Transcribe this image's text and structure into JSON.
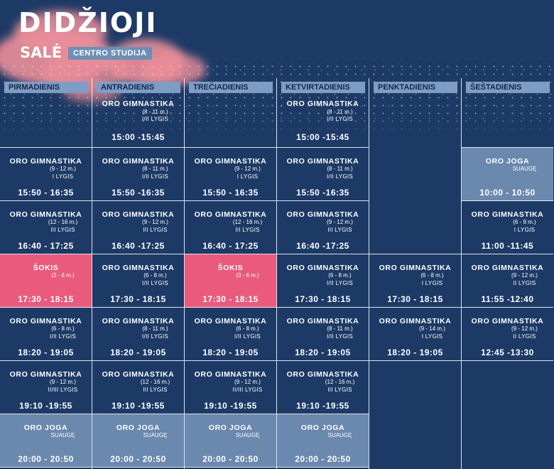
{
  "header": {
    "title": "DIDŽIOJI",
    "subtitle": "SALĖ",
    "studio": "CENTRO STUDIJA"
  },
  "days": [
    {
      "name": "PIRMADIENIS",
      "slots": [
        null,
        {
          "name": "ORO GIMNASTIKA",
          "age": "(9 - 12 m.)",
          "level": "I LYGIS",
          "time": "15:50 - 16:35"
        },
        {
          "name": "ORO GIMNASTIKA",
          "age": "(12 - 16 m.)",
          "level": "III LYGIS",
          "time": "16:40 - 17:25"
        },
        {
          "name": "ŠOKIS",
          "age": "(3 - 6 m.)",
          "level": "",
          "time": "17:30 - 18:15",
          "style": "pink"
        },
        {
          "name": "ORO GIMNASTIKA",
          "age": "(6 - 8 m.)",
          "level": "I/II LYGIS",
          "time": "18:20 - 19:05"
        },
        {
          "name": "ORO GIMNASTIKA",
          "age": "(9 - 12 m.)",
          "level": "II/III LYGIS",
          "time": "19:10 -19:55"
        },
        {
          "name": "ORO JOGA",
          "age": "SUAUGĘ",
          "level": "",
          "time": "20:00 - 20:50",
          "style": "gray"
        }
      ]
    },
    {
      "name": "ANTRADIENIS",
      "slots": [
        {
          "name": "ORO GIMNASTIKA",
          "age": "(8 - 11 m.)",
          "level": "I/II LYGIS",
          "time": "15:00 -15:45"
        },
        {
          "name": "ORO GIMNASTIKA",
          "age": "(8 - 11 m.)",
          "level": "I/II LYGIS",
          "time": "15:50 -16:35"
        },
        {
          "name": "ORO GIMNASTIKA",
          "age": "(9 - 12 m.)",
          "level": "III LYGIS",
          "time": "16:40 -17:25"
        },
        {
          "name": "ORO GIMNASTIKA",
          "age": "(6 - 8 m.)",
          "level": "I/II LYGIS",
          "time": "17:30 - 18:15"
        },
        {
          "name": "ORO GIMNASTIKA",
          "age": "(8 - 11 m.)",
          "level": "I/II LYGIS",
          "time": "18:20 - 19:05"
        },
        {
          "name": "ORO GIMNASTIKA",
          "age": "(12 - 16 m.)",
          "level": "III LYGIS",
          "time": "19:10 -19:55"
        },
        {
          "name": "ORO JOGA",
          "age": "SUAUGĘ",
          "level": "",
          "time": "20:00 - 20:50",
          "style": "gray"
        }
      ]
    },
    {
      "name": "TREČIADIENIS",
      "slots": [
        null,
        {
          "name": "ORO GIMNASTIKA",
          "age": "(9 - 12 m.)",
          "level": "I LYGIS",
          "time": "15:50 - 16:35"
        },
        {
          "name": "ORO GIMNASTIKA",
          "age": "(12 - 16 m.)",
          "level": "III LYGIS",
          "time": "16:40 - 17:25"
        },
        {
          "name": "ŠOKIS",
          "age": "(3 - 6 m.)",
          "level": "",
          "time": "17:30 - 18:15",
          "style": "pink"
        },
        {
          "name": "ORO GIMNASTIKA",
          "age": "(6 - 8 m.)",
          "level": "I/II LYGIS",
          "time": "18:20 - 19:05"
        },
        {
          "name": "ORO GIMNASTIKA",
          "age": "(9 - 12 m.)",
          "level": "II/III LYGIS",
          "time": "19:10 -19:55"
        },
        {
          "name": "ORO JOGA",
          "age": "SUAUGĘ",
          "level": "",
          "time": "20:00 - 20:50",
          "style": "gray"
        }
      ]
    },
    {
      "name": "KETVIRTADIENIS",
      "slots": [
        {
          "name": "ORO GIMNASTIKA",
          "age": "(8 - 11 m.)",
          "level": "I/II LYGIS",
          "time": "15:00 -15:45"
        },
        {
          "name": "ORO GIMNASTIKA",
          "age": "(8 - 11 m.)",
          "level": "I/II LYGIS",
          "time": "15:50 -16:35"
        },
        {
          "name": "ORO GIMNASTIKA",
          "age": "(9 - 12 m.)",
          "level": "III LYGIS",
          "time": "16:40 -17:25"
        },
        {
          "name": "ORO GIMNASTIKA",
          "age": "(6 - 8 m.)",
          "level": "I/II LYGIS",
          "time": "17:30 - 18:15"
        },
        {
          "name": "ORO GIMNASTIKA",
          "age": "(8 - 11 m.)",
          "level": "I/II LYGIS",
          "time": "18:20 - 19:05"
        },
        {
          "name": "ORO GIMNASTIKA",
          "age": "(12 - 16 m.)",
          "level": "III LYGIS",
          "time": "19:10 -19:55"
        },
        {
          "name": "ORO JOGA",
          "age": "SUAUGĘ",
          "level": "",
          "time": "20:00 - 20:50",
          "style": "gray"
        }
      ]
    },
    {
      "name": "PENKTADIENIS",
      "slots": [
        null,
        null,
        null,
        {
          "name": "ORO GIMNASTIKA",
          "age": "(6 - 8 m.)",
          "level": "I LYGIS",
          "time": "17:30 - 18:15"
        },
        {
          "name": "ORO GIMNASTIKA",
          "age": "(9 - 14 m.)",
          "level": "I LYGIS",
          "time": "18:20 - 19:05"
        },
        null,
        null
      ]
    },
    {
      "name": "ŠEŠTADIENIS",
      "slots": [
        null,
        {
          "name": "ORO JOGA",
          "age": "SUAUGĘ",
          "level": "",
          "time": "10:00 - 10:50",
          "style": "gray"
        },
        {
          "name": "ORO GIMNASTIKA",
          "age": "(6 - 9 m.)",
          "level": "I LYGIS",
          "time": "11:00 -11:45"
        },
        {
          "name": "ORO GIMNASTIKA",
          "age": "(9 - 12 m.)",
          "level": "II LYGIS",
          "time": "11:55 -12:40"
        },
        {
          "name": "ORO GIMNASTIKA",
          "age": "(9 - 12 m.)",
          "level": "II LYGIS",
          "time": "12:45 -13:30"
        },
        null,
        null
      ]
    }
  ]
}
